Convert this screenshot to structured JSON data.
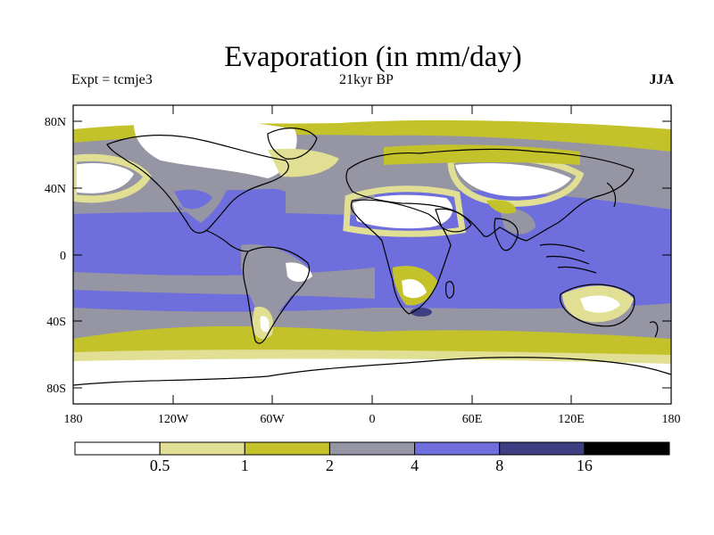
{
  "title": "Evaporation (in mm/day)",
  "left_subtitle": "Expt = tcmje3",
  "center_subtitle": "21kyr BP",
  "right_subtitle": "JJA",
  "y_ticks": [
    "80N",
    "40N",
    "0",
    "40S",
    "80S"
  ],
  "x_ticks": [
    "180",
    "120W",
    "60W",
    "0",
    "60E",
    "120E",
    "180"
  ],
  "colorbar": {
    "colors": [
      "#ffffff",
      "#e0df94",
      "#c3c22a",
      "#9595a3",
      "#6e6edc",
      "#3e3e83",
      "#000000"
    ],
    "labels": [
      "0.5",
      "1",
      "2",
      "4",
      "8",
      "16"
    ]
  }
}
